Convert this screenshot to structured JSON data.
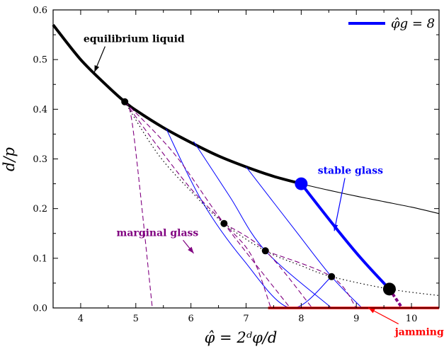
{
  "chart_data": {
    "type": "line",
    "xlabel": "φ̂ = 2ᵈφ/d",
    "ylabel": "d/p",
    "xlim": [
      3.5,
      10.5
    ],
    "ylim": [
      0.0,
      0.6
    ],
    "xticks": [
      4,
      5,
      6,
      7,
      8,
      9,
      10
    ],
    "yticks": [
      0.0,
      0.1,
      0.2,
      0.3,
      0.4,
      0.5,
      0.6
    ],
    "xtick_labels": [
      "4",
      "5",
      "6",
      "7",
      "8",
      "9",
      "10"
    ],
    "ytick_labels": [
      "0.0",
      "0.1",
      "0.2",
      "0.3",
      "0.4",
      "0.5",
      "0.6"
    ],
    "grid": false,
    "legend": {
      "position": "top-right",
      "entries": [
        {
          "label": "φ̂g = 8",
          "color": "#0000ff"
        }
      ]
    },
    "colors": {
      "liquid": "#000000",
      "stable": "#0000ff",
      "marginal": "#800080",
      "jamming": "#ff0000"
    },
    "series": [
      {
        "role": "liquid-thin",
        "x": [
          3.5,
          4.0,
          4.5,
          4.8,
          5.0,
          5.5,
          6.0,
          6.5,
          7.0,
          7.5,
          8.0,
          8.5,
          9.0,
          9.5,
          10.0,
          10.5
        ],
        "y": [
          0.57,
          0.5,
          0.445,
          0.415,
          0.398,
          0.363,
          0.333,
          0.306,
          0.284,
          0.265,
          0.25,
          0.237,
          0.225,
          0.214,
          0.203,
          0.19
        ]
      },
      {
        "role": "liquid-thick",
        "x": [
          3.5,
          4.0,
          4.5,
          4.8,
          5.0,
          5.5,
          6.0,
          6.5,
          7.0,
          7.5,
          8.0
        ],
        "y": [
          0.57,
          0.5,
          0.445,
          0.415,
          0.398,
          0.363,
          0.333,
          0.306,
          0.284,
          0.265,
          0.25
        ]
      },
      {
        "role": "stable-thin",
        "x": [
          5.55,
          6.2,
          6.95,
          7.8,
          8.55
        ],
        "y": [
          0.361,
          0.215,
          0.097,
          0.0,
          0.063
        ]
      },
      {
        "role": "stable-thin",
        "x": [
          6.05,
          6.7,
          7.35,
          8.55
        ],
        "y": [
          0.335,
          0.225,
          0.115,
          0.0
        ]
      },
      {
        "role": "stable-thin",
        "x": [
          7.0,
          7.9,
          8.55,
          9.1
        ],
        "y": [
          0.284,
          0.155,
          0.063,
          0.0
        ]
      },
      {
        "role": "stable-thick",
        "x": [
          8.0,
          8.6,
          9.1,
          9.6
        ],
        "y": [
          0.25,
          0.165,
          0.098,
          0.038
        ]
      },
      {
        "role": "stable-end-dashed",
        "x": [
          9.6,
          9.83
        ],
        "y": [
          0.038,
          0.0
        ]
      },
      {
        "role": "marginal-dashed",
        "x": [
          4.8,
          5.4,
          6.0,
          6.6,
          7.1,
          7.45
        ],
        "y": [
          0.415,
          0.325,
          0.24,
          0.17,
          0.105,
          0.0
        ]
      },
      {
        "role": "marginal-dashed",
        "x": [
          4.8,
          5.7,
          6.6,
          7.8
        ],
        "y": [
          0.415,
          0.31,
          0.17,
          0.0
        ]
      },
      {
        "role": "marginal-dashed",
        "x": [
          6.6,
          7.35,
          8.2
        ],
        "y": [
          0.17,
          0.115,
          0.0
        ]
      },
      {
        "role": "marginal-dashed",
        "x": [
          7.35,
          8.55,
          9.0
        ],
        "y": [
          0.115,
          0.063,
          0.0
        ]
      },
      {
        "role": "marginal-dashed",
        "x": [
          4.8,
          4.95,
          5.3
        ],
        "y": [
          0.415,
          0.36,
          0.0
        ]
      },
      {
        "role": "dotted-threshold",
        "x": [
          4.8,
          5.4,
          6.0,
          6.6,
          7.35,
          8.0,
          8.55,
          9.6,
          10.5
        ],
        "y": [
          0.415,
          0.31,
          0.235,
          0.17,
          0.115,
          0.085,
          0.063,
          0.038,
          0.025
        ]
      },
      {
        "role": "jamming-line",
        "x": [
          7.4,
          10.5
        ],
        "y": [
          0.0,
          0.0
        ]
      }
    ],
    "markers": [
      {
        "x": 4.8,
        "y": 0.415,
        "size": "small",
        "color": "#000000"
      },
      {
        "x": 6.6,
        "y": 0.17,
        "size": "small",
        "color": "#000000"
      },
      {
        "x": 7.35,
        "y": 0.115,
        "size": "small",
        "color": "#000000"
      },
      {
        "x": 8.55,
        "y": 0.063,
        "size": "small",
        "color": "#000000"
      },
      {
        "x": 8.0,
        "y": 0.25,
        "size": "large",
        "color": "#0000ff"
      },
      {
        "x": 9.6,
        "y": 0.038,
        "size": "large",
        "color": "#000000"
      }
    ],
    "annotations": [
      {
        "text": "equilibrium liquid",
        "x": 4.05,
        "y": 0.535,
        "color": "#000000",
        "arrow_to": [
          4.25,
          0.475
        ]
      },
      {
        "text": "stable glass",
        "x": 8.3,
        "y": 0.27,
        "color": "#0000ff",
        "arrow_to": [
          8.6,
          0.155
        ]
      },
      {
        "text": "marginal glass",
        "x": 4.65,
        "y": 0.145,
        "color": "#800080",
        "arrow_to": [
          6.05,
          0.11
        ]
      },
      {
        "text": "jamming line",
        "x": 9.7,
        "y": -0.055,
        "color": "#ff0000",
        "arrow_to": [
          9.22,
          0.0
        ]
      }
    ]
  }
}
